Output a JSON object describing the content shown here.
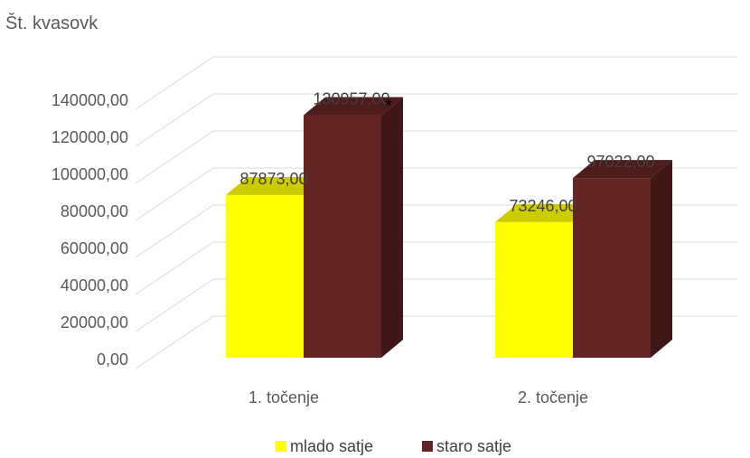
{
  "chart_data": {
    "type": "bar",
    "ylabel": "Št. kvasovk",
    "xlabel": "",
    "ylim": [
      0,
      140000
    ],
    "y_tick_step": 20000,
    "y_tick_labels": [
      "0,00",
      "20000,00",
      "40000,00",
      "60000,00",
      "80000,00",
      "100000,00",
      "120000,00",
      "140000,00"
    ],
    "categories": [
      "1. točenje",
      "2. točenje"
    ],
    "series": [
      {
        "name": "mlado satje",
        "values": [
          87873,
          73246
        ],
        "labels": [
          "87873,00",
          "73246,00"
        ],
        "color": "#FFFF00",
        "top_color": "#CCCC00",
        "side_color": "#B3B300"
      },
      {
        "name": "staro satje",
        "values": [
          130957,
          97022
        ],
        "labels": [
          "130957,00",
          "97022,00"
        ],
        "color": "#632523",
        "top_color": "#4D1C1B",
        "side_color": "#3F1716"
      }
    ],
    "annotations": [
      {
        "text": "*",
        "series": 1,
        "category": 0
      }
    ],
    "legend": "bottom",
    "grid": true,
    "style": "3d-column"
  }
}
